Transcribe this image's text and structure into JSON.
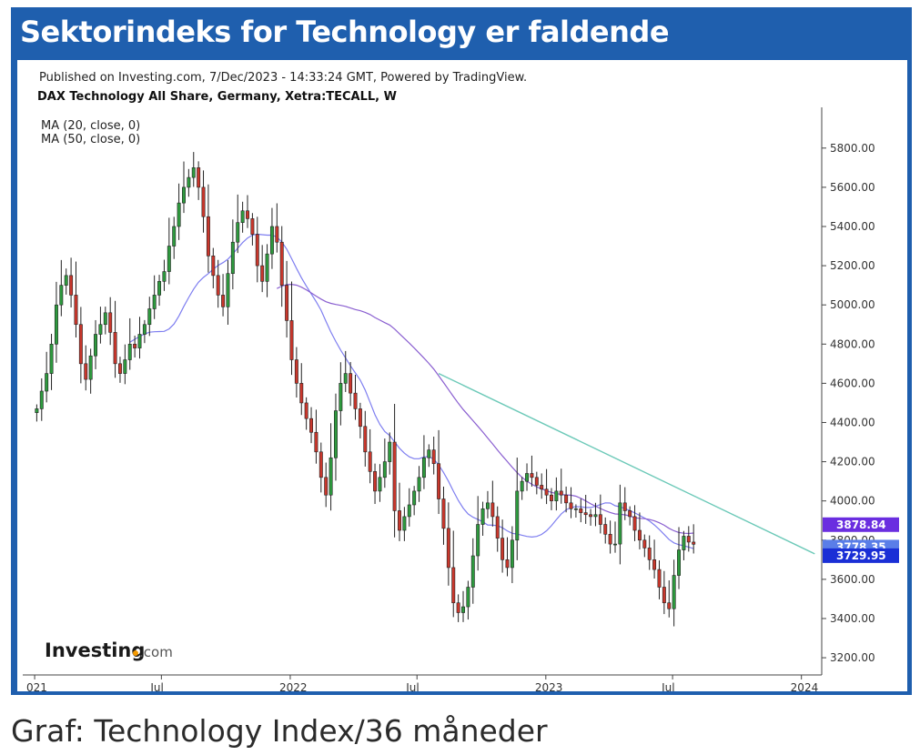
{
  "header": {
    "title": "Sektorindeks for Technology er faldende"
  },
  "caption": "Graf: Technology Index/36 måneder",
  "chart_data": {
    "type": "candlestick",
    "published": "Published on Investing.com, 7/Dec/2023 - 14:33:24 GMT, Powered by TradingView.",
    "symbol": "DAX Technology All Share, Germany, Xetra:TECALL, W",
    "indicators": [
      "MA (20, close, 0)",
      "MA (50, close, 0)"
    ],
    "logo": {
      "main": "Investing",
      "suffix": ".com"
    },
    "x_ticks": [
      "021",
      "Jul",
      "2022",
      "Jul",
      "2023",
      "Jul",
      "2024"
    ],
    "x_tick_dates": [
      "2021-01-01",
      "2021-07-01",
      "2022-01-01",
      "2022-07-01",
      "2023-01-01",
      "2023-07-01",
      "2024-01-01"
    ],
    "y_ticks": [
      "3200.00",
      "3400.00",
      "3600.00",
      "3800.00",
      "4000.00",
      "4200.00",
      "4400.00",
      "4600.00",
      "4800.00",
      "5000.00",
      "5200.00",
      "5400.00",
      "5600.00",
      "5800.00"
    ],
    "ylim": [
      3140,
      5980
    ],
    "xlim": [
      "2020-12-15",
      "2024-01-30"
    ],
    "colors": {
      "up": "#2e9a3e",
      "down": "#c9372c",
      "ma20": "#7e7ef0",
      "ma50": "#8a5fd0",
      "trend": "#6cc9b8"
    },
    "badges": [
      {
        "label": "3878.84",
        "value": 3878.84,
        "color": "#6a2ee0"
      },
      {
        "label": "3778.35",
        "value": 3778.35,
        "color": "#5a7ee8"
      },
      {
        "label": "3729.95",
        "value": 3729.95,
        "color": "#1a2fd6"
      }
    ],
    "trendline": {
      "start": [
        "2022-08-01",
        4650
      ],
      "end": [
        "2024-01-20",
        3730
      ]
    },
    "closes": [
      4470,
      4560,
      4650,
      4800,
      5000,
      5100,
      5150,
      5050,
      4900,
      4700,
      4620,
      4740,
      4850,
      4900,
      4960,
      4860,
      4700,
      4650,
      4720,
      4800,
      4780,
      4850,
      4900,
      4980,
      5050,
      5120,
      5170,
      5300,
      5400,
      5520,
      5600,
      5650,
      5700,
      5600,
      5450,
      5250,
      5150,
      5050,
      4990,
      5160,
      5320,
      5420,
      5480,
      5440,
      5360,
      5200,
      5120,
      5260,
      5400,
      5320,
      5100,
      4920,
      4720,
      4600,
      4500,
      4420,
      4350,
      4250,
      4120,
      4030,
      4220,
      4460,
      4600,
      4650,
      4550,
      4470,
      4380,
      4250,
      4150,
      4050,
      4120,
      4200,
      4300,
      3950,
      3850,
      3920,
      3980,
      4050,
      4120,
      4220,
      4260,
      4190,
      4010,
      3860,
      3660,
      3480,
      3430,
      3460,
      3560,
      3720,
      3880,
      3960,
      3990,
      3920,
      3810,
      3700,
      3660,
      3800,
      4050,
      4100,
      4140,
      4120,
      4080,
      4060,
      4030,
      4000,
      4050,
      4030,
      3990,
      3960,
      3960,
      3940,
      3930,
      3920,
      3930,
      3880,
      3830,
      3780,
      3780,
      3990,
      3950,
      3920,
      3850,
      3800,
      3760,
      3700,
      3650,
      3560,
      3480,
      3450,
      3620,
      3750,
      3820,
      3790,
      3779
    ],
    "last": 3778.35,
    "ma20_value": 3729.95,
    "ma50_value": 3878.84
  }
}
